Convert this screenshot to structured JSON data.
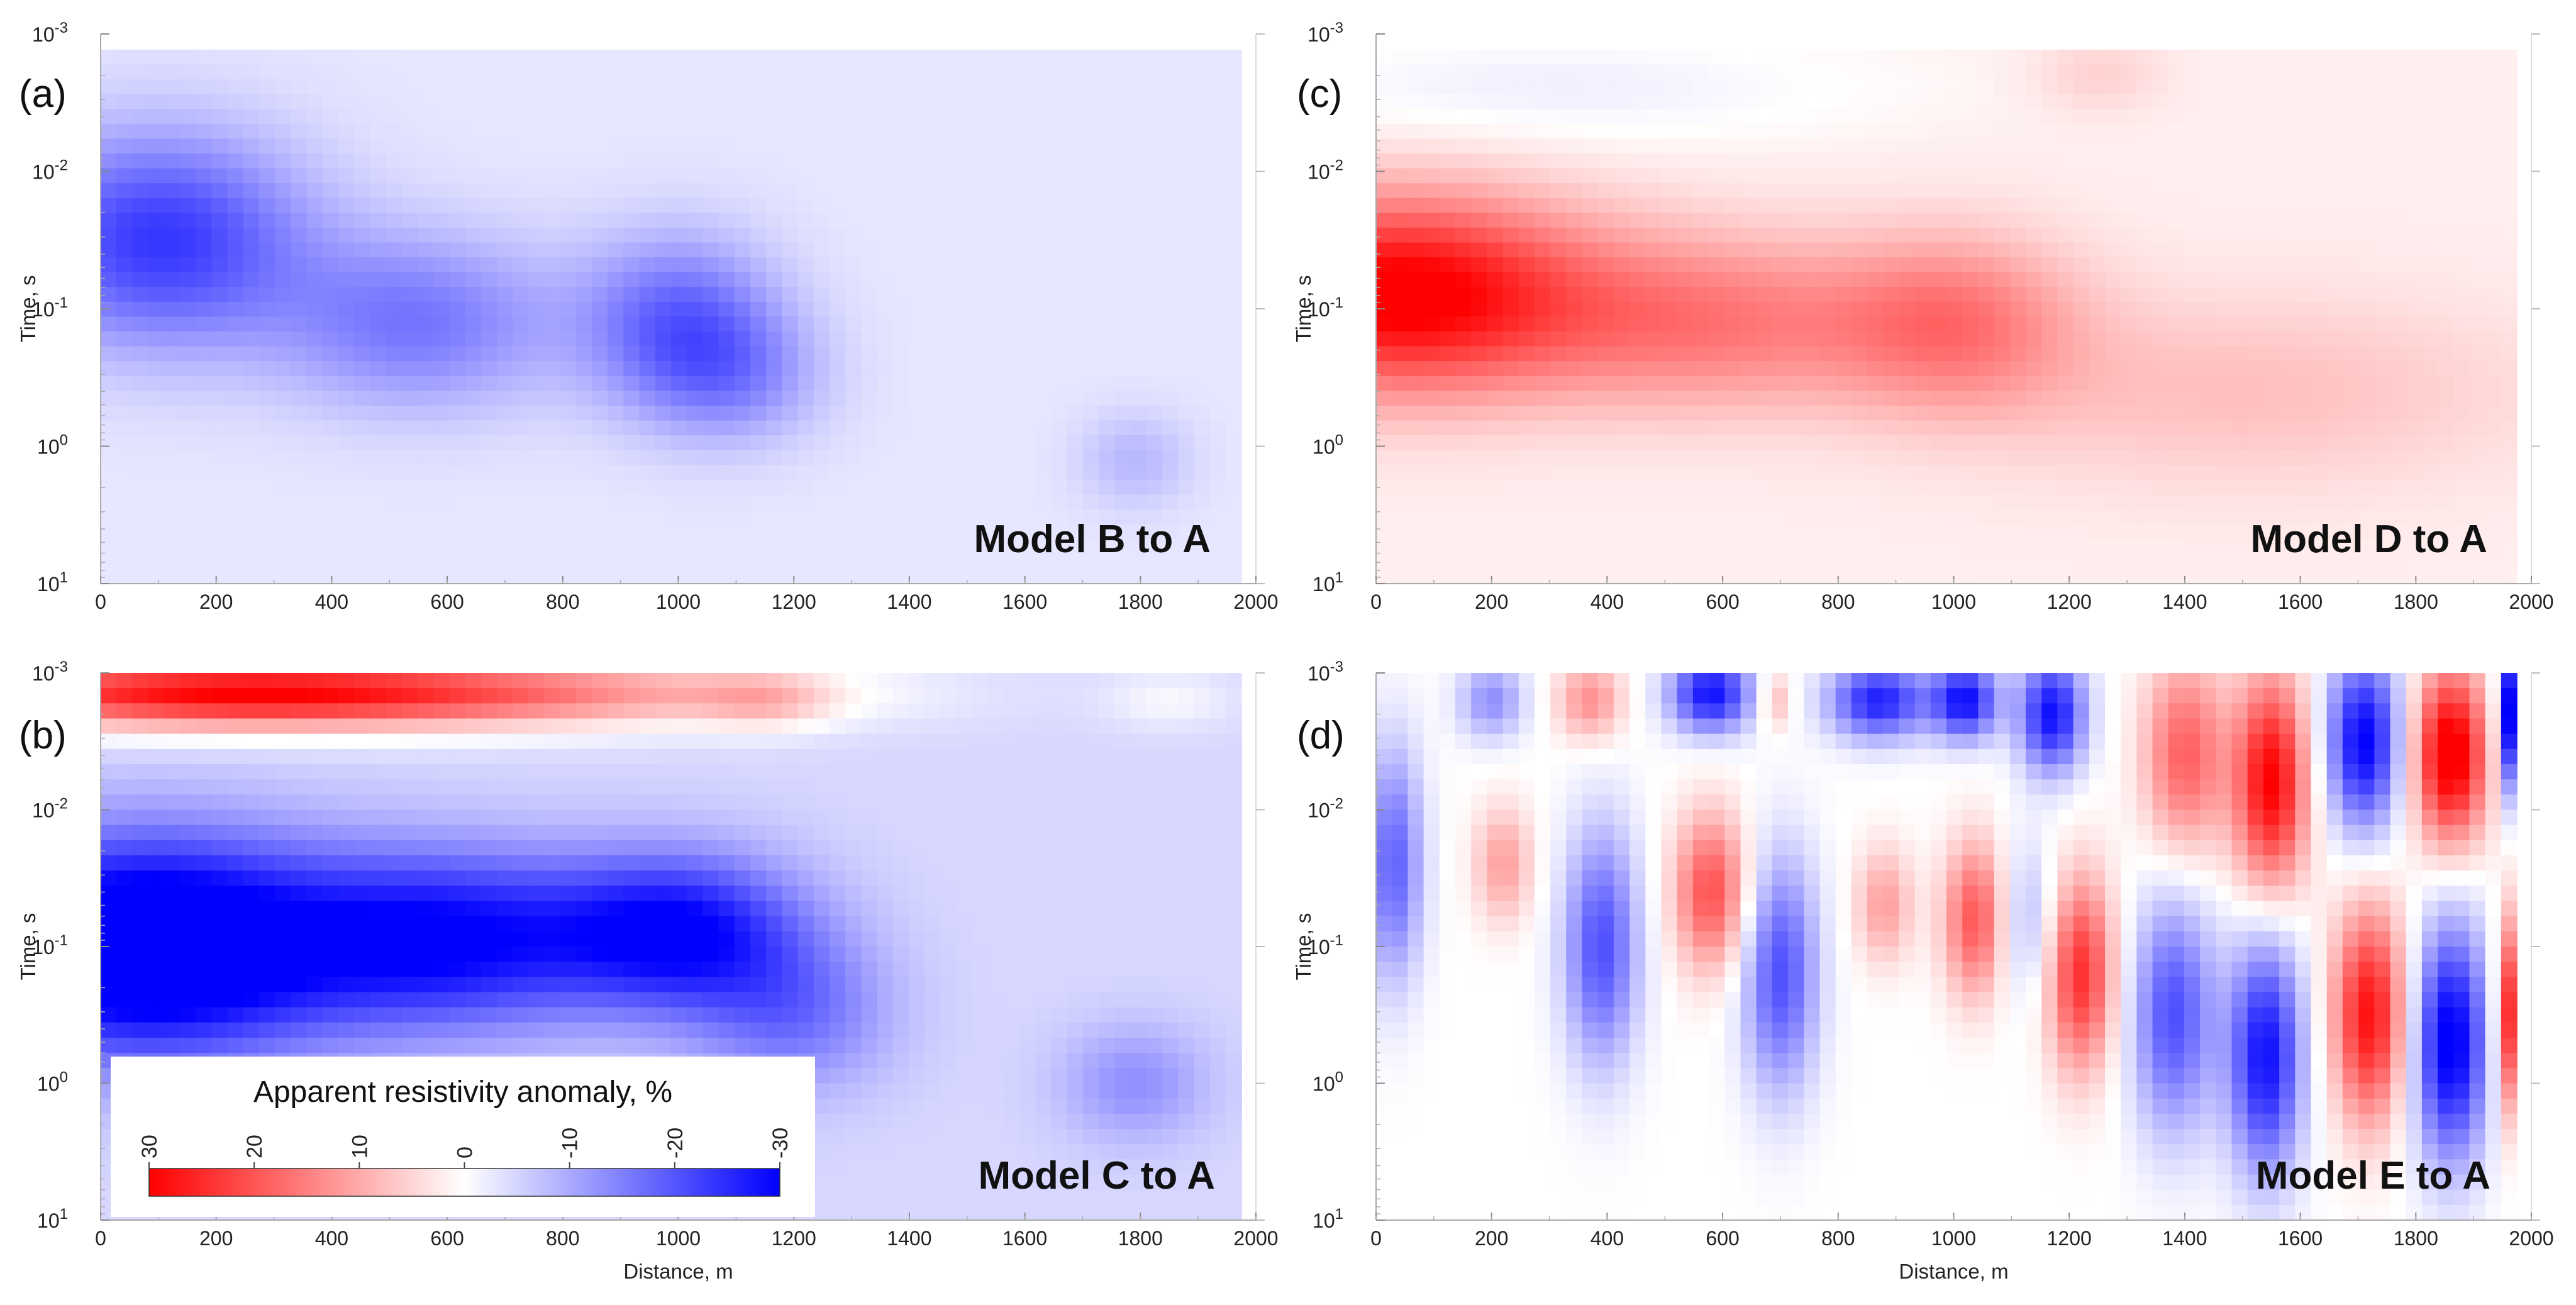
{
  "chart_data": [
    {
      "type": "heatmap",
      "panel": "(a)",
      "model_label": "Model B to A",
      "ylabel": "Time, s",
      "xlabel": "",
      "xlim": [
        0,
        2000
      ],
      "x_ticks": [
        "0",
        "200",
        "400",
        "600",
        "800",
        "1000",
        "1200",
        "1400",
        "1600",
        "1800",
        "2000"
      ],
      "y_scale": "log",
      "ylim": [
        0.001,
        10
      ],
      "y_ticks": [
        {
          "base": "10",
          "exp": "-3"
        },
        {
          "base": "10",
          "exp": "-2"
        },
        {
          "base": "10",
          "exp": "-1"
        },
        {
          "base": "10",
          "exp": "0"
        },
        {
          "base": "10",
          "exp": "1"
        }
      ],
      "data_xrange": [
        0,
        1975
      ],
      "data_yrange": [
        0.0013,
        10
      ],
      "background": -3,
      "blobs": [
        {
          "x": 100,
          "logt": -1.5,
          "sx": 180,
          "sl": 0.55,
          "v": -22
        },
        {
          "x": 550,
          "logt": -0.9,
          "sx": 170,
          "sl": 0.45,
          "v": -14
        },
        {
          "x": 1000,
          "logt": -0.9,
          "sx": 120,
          "sl": 0.45,
          "v": -16
        },
        {
          "x": 1100,
          "logt": -0.5,
          "sx": 110,
          "sl": 0.35,
          "v": -9
        },
        {
          "x": 1790,
          "logt": 0.1,
          "sx": 70,
          "sl": 0.25,
          "v": -6
        }
      ]
    },
    {
      "type": "heatmap",
      "panel": "(b)",
      "model_label": "Model C to A",
      "ylabel": "Time, s",
      "xlabel": "Distance, m",
      "xlim": [
        0,
        2000
      ],
      "x_ticks": [
        "0",
        "200",
        "400",
        "600",
        "800",
        "1000",
        "1200",
        "1400",
        "1600",
        "1800",
        "2000"
      ],
      "y_scale": "log",
      "ylim": [
        0.001,
        10
      ],
      "y_ticks": [
        {
          "base": "10",
          "exp": "-3"
        },
        {
          "base": "10",
          "exp": "-2"
        },
        {
          "base": "10",
          "exp": "-1"
        },
        {
          "base": "10",
          "exp": "0"
        },
        {
          "base": "10",
          "exp": "1"
        }
      ],
      "data_xrange": [
        0,
        1975
      ],
      "data_yrange": [
        0.001,
        10
      ],
      "background": -5,
      "blobs": [
        {
          "x": 80,
          "logt": -1.0,
          "sx": 230,
          "sl": 0.55,
          "v": -40
        },
        {
          "x": 600,
          "logt": -1.05,
          "sx": 200,
          "sl": 0.45,
          "v": -26
        },
        {
          "x": 1000,
          "logt": -1.1,
          "sx": 150,
          "sl": 0.4,
          "v": -26
        },
        {
          "x": 1200,
          "logt": -0.5,
          "sx": 120,
          "sl": 0.4,
          "v": -12
        },
        {
          "x": 1790,
          "logt": 0.0,
          "sx": 90,
          "sl": 0.3,
          "v": -9
        },
        {
          "x": 150,
          "logt": -2.85,
          "sx": 350,
          "sl": 0.18,
          "v": 30
        },
        {
          "x": 700,
          "logt": -2.85,
          "sx": 380,
          "sl": 0.18,
          "v": 18
        },
        {
          "x": 1150,
          "logt": -2.8,
          "sx": 80,
          "sl": 0.15,
          "v": 8
        },
        {
          "x": 1850,
          "logt": -2.8,
          "sx": 80,
          "sl": 0.15,
          "v": 4
        }
      ],
      "colorbar": {
        "title": "Apparent resistivity anomaly, %",
        "ticks": [
          "30",
          "20",
          "10",
          "0",
          "-10",
          "-20",
          "-30"
        ],
        "range": [
          30,
          -30
        ]
      }
    },
    {
      "type": "heatmap",
      "panel": "(c)",
      "model_label": "Model D to A",
      "ylabel": "Time, s",
      "xlabel": "",
      "xlim": [
        0,
        2000
      ],
      "x_ticks": [
        "0",
        "200",
        "400",
        "600",
        "800",
        "1000",
        "1200",
        "1400",
        "1600",
        "1800",
        "2000"
      ],
      "y_scale": "log",
      "ylim": [
        0.001,
        10
      ],
      "y_ticks": [
        {
          "base": "10",
          "exp": "-3"
        },
        {
          "base": "10",
          "exp": "-2"
        },
        {
          "base": "10",
          "exp": "-1"
        },
        {
          "base": "10",
          "exp": "0"
        },
        {
          "base": "10",
          "exp": "1"
        }
      ],
      "data_xrange": [
        0,
        1975
      ],
      "data_yrange": [
        0.0013,
        10
      ],
      "background": 2,
      "blobs": [
        {
          "x": 40,
          "logt": -1.1,
          "sx": 230,
          "sl": 0.5,
          "v": 32
        },
        {
          "x": 580,
          "logt": -0.9,
          "sx": 220,
          "sl": 0.45,
          "v": 14
        },
        {
          "x": 1000,
          "logt": -0.9,
          "sx": 150,
          "sl": 0.45,
          "v": 14
        },
        {
          "x": 1500,
          "logt": -0.4,
          "sx": 350,
          "sl": 0.5,
          "v": 6
        },
        {
          "x": 300,
          "logt": -2.6,
          "sx": 400,
          "sl": 0.3,
          "v": -4
        },
        {
          "x": 1250,
          "logt": -2.7,
          "sx": 80,
          "sl": 0.2,
          "v": 4
        }
      ]
    },
    {
      "type": "heatmap",
      "panel": "(d)",
      "model_label": "Model E to A",
      "ylabel": "Time, s",
      "xlabel": "Distance, m",
      "xlim": [
        0,
        2000
      ],
      "x_ticks": [
        "0",
        "200",
        "400",
        "600",
        "800",
        "1000",
        "1200",
        "1400",
        "1600",
        "1800",
        "2000"
      ],
      "y_scale": "log",
      "ylim": [
        0.001,
        10
      ],
      "y_ticks": [
        {
          "base": "10",
          "exp": "-3"
        },
        {
          "base": "10",
          "exp": "-2"
        },
        {
          "base": "10",
          "exp": "-1"
        },
        {
          "base": "10",
          "exp": "0"
        },
        {
          "base": "10",
          "exp": "1"
        }
      ],
      "data_xrange": [
        0,
        1975
      ],
      "data_yrange": [
        0.001,
        10
      ],
      "background": 0,
      "blobs": [
        {
          "x": 30,
          "logt": -1.6,
          "sx": 35,
          "sl": 0.6,
          "v": -20
        },
        {
          "x": 200,
          "logt": -2.8,
          "sx": 40,
          "sl": 0.2,
          "v": -14
        },
        {
          "x": 220,
          "logt": -1.6,
          "sx": 35,
          "sl": 0.3,
          "v": 12
        },
        {
          "x": 370,
          "logt": -2.8,
          "sx": 40,
          "sl": 0.2,
          "v": 14
        },
        {
          "x": 390,
          "logt": -1.0,
          "sx": 45,
          "sl": 0.6,
          "v": -22
        },
        {
          "x": 580,
          "logt": -2.85,
          "sx": 50,
          "sl": 0.2,
          "v": -30
        },
        {
          "x": 580,
          "logt": -1.4,
          "sx": 45,
          "sl": 0.4,
          "v": 22
        },
        {
          "x": 700,
          "logt": -0.8,
          "sx": 45,
          "sl": 0.6,
          "v": -22
        },
        {
          "x": 690,
          "logt": -2.8,
          "sx": 20,
          "sl": 0.15,
          "v": 10
        },
        {
          "x": 870,
          "logt": -2.8,
          "sx": 60,
          "sl": 0.2,
          "v": -28
        },
        {
          "x": 880,
          "logt": -1.3,
          "sx": 35,
          "sl": 0.3,
          "v": 12
        },
        {
          "x": 1020,
          "logt": -2.8,
          "sx": 40,
          "sl": 0.2,
          "v": -30
        },
        {
          "x": 1040,
          "logt": -1.2,
          "sx": 40,
          "sl": 0.4,
          "v": 22
        },
        {
          "x": 1170,
          "logt": -2.7,
          "sx": 40,
          "sl": 0.3,
          "v": -30
        },
        {
          "x": 1220,
          "logt": -0.8,
          "sx": 40,
          "sl": 0.5,
          "v": 26
        },
        {
          "x": 1120,
          "logt": -1.2,
          "sx": 40,
          "sl": 0.4,
          "v": -10
        },
        {
          "x": 1400,
          "logt": -2.4,
          "sx": 50,
          "sl": 0.5,
          "v": 20
        },
        {
          "x": 1380,
          "logt": -0.5,
          "sx": 50,
          "sl": 0.6,
          "v": -22
        },
        {
          "x": 1550,
          "logt": -2.2,
          "sx": 45,
          "sl": 0.55,
          "v": 32
        },
        {
          "x": 1540,
          "logt": -0.2,
          "sx": 45,
          "sl": 0.6,
          "v": -30
        },
        {
          "x": 1710,
          "logt": -2.5,
          "sx": 45,
          "sl": 0.45,
          "v": -32
        },
        {
          "x": 1720,
          "logt": -0.5,
          "sx": 45,
          "sl": 0.55,
          "v": 30
        },
        {
          "x": 1860,
          "logt": -2.4,
          "sx": 45,
          "sl": 0.45,
          "v": 36
        },
        {
          "x": 1860,
          "logt": -0.3,
          "sx": 45,
          "sl": 0.6,
          "v": -34
        },
        {
          "x": 1965,
          "logt": -2.7,
          "sx": 15,
          "sl": 0.4,
          "v": -36
        },
        {
          "x": 1960,
          "logt": -0.5,
          "sx": 15,
          "sl": 0.5,
          "v": 28
        }
      ]
    }
  ]
}
